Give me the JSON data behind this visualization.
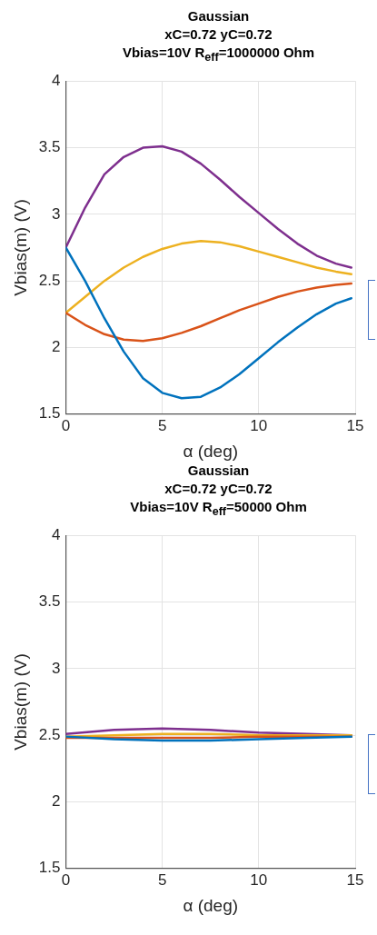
{
  "chart_data": [
    {
      "type": "line",
      "title": "Gaussian\nxC=0.72 yC=0.72\nVbias=10V  R$_{eff}$=1000000 Ohm",
      "xlabel": "α (deg)",
      "ylabel": "Vbias(m) (V)",
      "xlim": [
        0,
        15
      ],
      "xticks": [
        0,
        5,
        10,
        15
      ],
      "ylim": [
        1.5,
        4
      ],
      "yticks": [
        1.5,
        2,
        2.5,
        3,
        3.5,
        4
      ],
      "grid": true,
      "marker": "none",
      "line_style": "solid",
      "x": [
        0,
        1,
        2,
        3,
        4,
        5,
        6,
        7,
        8,
        9,
        10,
        11,
        12,
        13,
        14,
        14.8
      ],
      "series": [
        {
          "color": "#0072bd",
          "values": [
            2.75,
            2.5,
            2.22,
            1.97,
            1.77,
            1.66,
            1.62,
            1.63,
            1.7,
            1.8,
            1.92,
            2.04,
            2.15,
            2.25,
            2.33,
            2.37
          ]
        },
        {
          "color": "#d95319",
          "values": [
            2.26,
            2.17,
            2.1,
            2.06,
            2.05,
            2.07,
            2.11,
            2.16,
            2.22,
            2.28,
            2.33,
            2.38,
            2.42,
            2.45,
            2.47,
            2.48
          ]
        },
        {
          "color": "#edb120",
          "values": [
            2.26,
            2.38,
            2.5,
            2.6,
            2.68,
            2.74,
            2.78,
            2.8,
            2.79,
            2.76,
            2.72,
            2.68,
            2.64,
            2.6,
            2.57,
            2.55
          ]
        },
        {
          "color": "#7e2f8e",
          "values": [
            2.75,
            3.05,
            3.3,
            3.43,
            3.5,
            3.51,
            3.47,
            3.38,
            3.26,
            3.13,
            3.01,
            2.89,
            2.78,
            2.69,
            2.63,
            2.6
          ]
        }
      ]
    },
    {
      "type": "line",
      "title": "Gaussian\nxC=0.72 yC=0.72\nVbias=10V  R$_{eff}$=50000 Ohm",
      "xlabel": "α (deg)",
      "ylabel": "Vbias(m) (V)",
      "xlim": [
        0,
        15
      ],
      "xticks": [
        0,
        5,
        10,
        15
      ],
      "ylim": [
        1.5,
        4
      ],
      "yticks": [
        1.5,
        2,
        2.5,
        3,
        3.5,
        4
      ],
      "grid": true,
      "marker": "none",
      "line_style": "solid",
      "x": [
        0,
        2.5,
        5,
        7.5,
        10,
        12.5,
        14.8
      ],
      "series": [
        {
          "color": "#0072bd",
          "values": [
            2.49,
            2.47,
            2.46,
            2.46,
            2.47,
            2.48,
            2.49
          ]
        },
        {
          "color": "#d95319",
          "values": [
            2.48,
            2.48,
            2.48,
            2.48,
            2.49,
            2.49,
            2.49
          ]
        },
        {
          "color": "#edb120",
          "values": [
            2.49,
            2.5,
            2.51,
            2.51,
            2.5,
            2.5,
            2.5
          ]
        },
        {
          "color": "#7e2f8e",
          "values": [
            2.51,
            2.54,
            2.55,
            2.54,
            2.52,
            2.51,
            2.5
          ]
        }
      ]
    }
  ]
}
